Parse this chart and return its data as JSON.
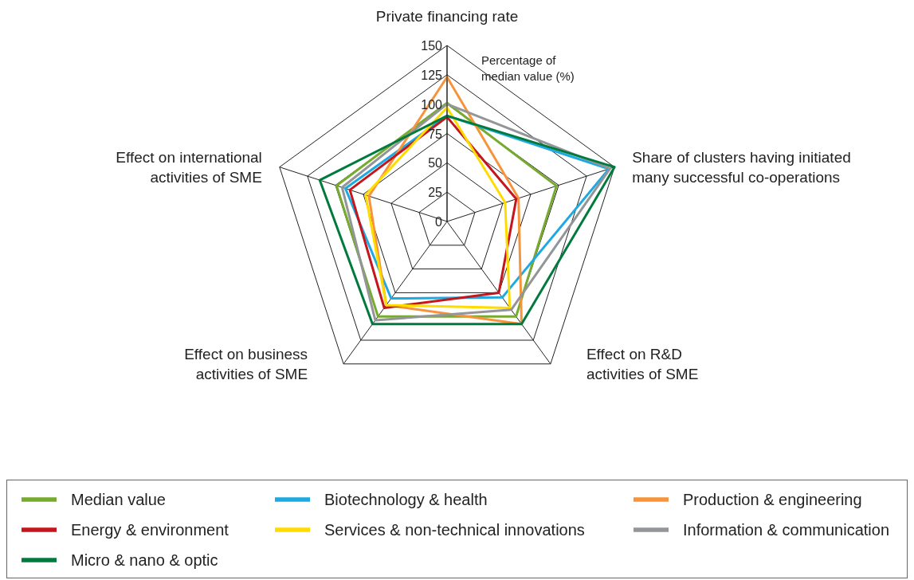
{
  "chart_data": {
    "type": "radar",
    "categories": [
      "Private financing rate",
      "Share of clusters having initiated many successful co-operations",
      "Effect on R&D activities of SME",
      "Effect on business activities of SME",
      "Effect on international activities of SME"
    ],
    "annotations": [
      "Percentage of median value (%)"
    ],
    "ylim": [
      0,
      150
    ],
    "yticks": [
      0,
      25,
      50,
      75,
      100,
      125,
      150
    ],
    "grid": true,
    "legend": "bottom",
    "marker": "none",
    "series": [
      {
        "name": "Median value",
        "color": "#77ab2f",
        "values": [
          101,
          98,
          100,
          100,
          99
        ]
      },
      {
        "name": "Biotechnology & health",
        "color": "#1fa9e1",
        "values": [
          90,
          145,
          80,
          81,
          91
        ]
      },
      {
        "name": "Production & engineering",
        "color": "#f7943b",
        "values": [
          123,
          64,
          108,
          88,
          70
        ]
      },
      {
        "name": "Energy & environment",
        "color": "#c4161c",
        "values": [
          89,
          62,
          75,
          91,
          87
        ]
      },
      {
        "name": "Services & non-technical innovations",
        "color": "#fedc00",
        "values": [
          97,
          52,
          91,
          88,
          73
        ]
      },
      {
        "name": "Information & communication",
        "color": "#939598",
        "values": [
          100,
          146,
          93,
          104,
          94
        ]
      },
      {
        "name": "Micro & nano & optic",
        "color": "#007a3d",
        "values": [
          90,
          150,
          108,
          108,
          114
        ]
      }
    ]
  }
}
